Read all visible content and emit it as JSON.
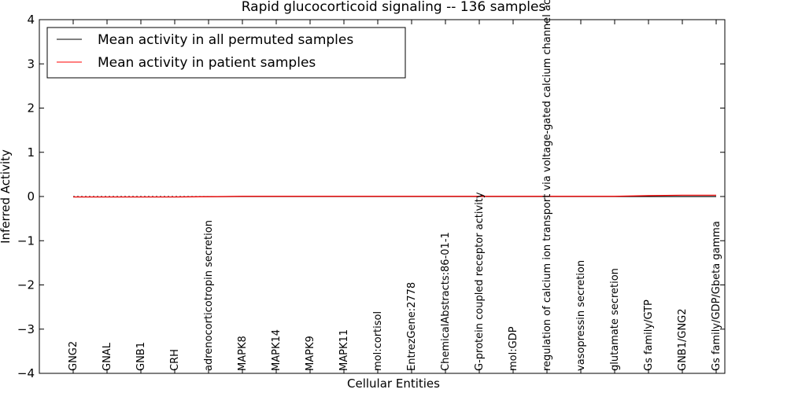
{
  "chart_data": {
    "type": "line",
    "title": "Rapid glucocorticoid signaling -- 136 samples",
    "xlabel": "Cellular Entities",
    "ylabel": "Inferred Activity",
    "ylim": [
      -4,
      4
    ],
    "yticks": [
      4,
      3,
      2,
      1,
      0,
      -1,
      -2,
      -3,
      -4
    ],
    "ytick_labels": [
      "4",
      "3",
      "2",
      "1",
      "0",
      "−1",
      "−2",
      "−3",
      "−4"
    ],
    "legend_position": "top-left",
    "categories": [
      "GNG2",
      "GNAL",
      "GNB1",
      "CRH",
      "adrenocorticotropin secretion",
      "MAPK8",
      "MAPK14",
      "MAPK9",
      "MAPK11",
      "mol:cortisol",
      "EntrezGene:2778",
      "ChemicalAbstracts:86-01-1",
      "G-protein coupled receptor activity",
      "mol:GDP",
      "regulation of calcium ion transport via voltage-gated calcium channel activity",
      "vasopressin secretion",
      "glutamate secretion",
      "Gs family/GTP",
      "GNB1/GNG2",
      "Gs family/GDP/Gbeta gamma"
    ],
    "series": [
      {
        "name": "Mean activity in all permuted samples",
        "color": "#000000",
        "values": [
          -0.01,
          -0.01,
          -0.01,
          -0.01,
          -0.005,
          0.0,
          0.0,
          0.0,
          0.0,
          0.0,
          0.0,
          0.0,
          0.0,
          0.0,
          0.0,
          0.0,
          0.0,
          0.0,
          0.0,
          0.0
        ]
      },
      {
        "name": "Mean activity in patient samples",
        "color": "#ff0000",
        "values": [
          -0.01,
          -0.01,
          -0.01,
          -0.01,
          -0.005,
          0.005,
          0.005,
          0.005,
          0.005,
          0.005,
          0.005,
          0.005,
          0.005,
          0.005,
          0.005,
          0.005,
          0.005,
          0.02,
          0.03,
          0.03
        ]
      }
    ]
  }
}
